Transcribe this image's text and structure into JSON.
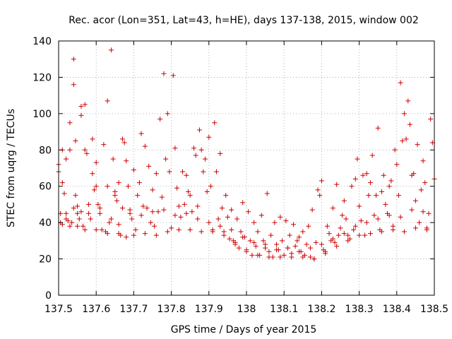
{
  "chart_data": {
    "type": "scatter",
    "title": "Rec. acor (Lon=351, Lat=43, h=HE), days 137-138, 2015, window 002",
    "xlabel": "GPS time / Days of year 2015",
    "ylabel": "STEC from uqrg / TECUs",
    "xlim": [
      137.5,
      138.5
    ],
    "ylim": [
      0,
      140
    ],
    "xticks": [
      137.5,
      137.6,
      137.7,
      137.8,
      137.9,
      138.0,
      138.1,
      138.2,
      138.3,
      138.4,
      138.5
    ],
    "xtick_labels": [
      "137.5",
      "137.6",
      "137.7",
      "137.8",
      "137.9",
      "138",
      "138.1",
      "138.2",
      "138.3",
      "138.4",
      "138.5"
    ],
    "yticks": [
      0,
      20,
      40,
      60,
      80,
      100,
      120,
      140
    ],
    "ytick_labels": [
      "0",
      "20",
      "40",
      "60",
      "80",
      "100",
      "120",
      "140"
    ],
    "grid": true,
    "marker": "+",
    "color": "#cc0000",
    "series": [
      {
        "name": "STEC",
        "points": [
          [
            137.5,
            72
          ],
          [
            137.5,
            68
          ],
          [
            137.505,
            45
          ],
          [
            137.505,
            40
          ],
          [
            137.51,
            80
          ],
          [
            137.51,
            62
          ],
          [
            137.515,
            56
          ],
          [
            137.52,
            75
          ],
          [
            137.52,
            42
          ],
          [
            137.525,
            41
          ],
          [
            137.53,
            95
          ],
          [
            137.53,
            80
          ],
          [
            137.535,
            40
          ],
          [
            137.54,
            130
          ],
          [
            137.54,
            116
          ],
          [
            137.545,
            85
          ],
          [
            137.545,
            55
          ],
          [
            137.55,
            49
          ],
          [
            137.55,
            45
          ],
          [
            137.555,
            42
          ],
          [
            137.56,
            104
          ],
          [
            137.56,
            99
          ],
          [
            137.565,
            38
          ],
          [
            137.57,
            105
          ],
          [
            137.57,
            80
          ],
          [
            137.575,
            78
          ],
          [
            137.58,
            45
          ],
          [
            137.585,
            42
          ],
          [
            137.59,
            86
          ],
          [
            137.59,
            67
          ],
          [
            137.595,
            58
          ],
          [
            137.6,
            73
          ],
          [
            137.6,
            60
          ],
          [
            137.605,
            50
          ],
          [
            137.61,
            48
          ],
          [
            137.615,
            36
          ],
          [
            137.62,
            83
          ],
          [
            137.625,
            35
          ],
          [
            137.63,
            107
          ],
          [
            137.63,
            60
          ],
          [
            137.635,
            40
          ],
          [
            137.64,
            135
          ],
          [
            137.645,
            75
          ],
          [
            137.65,
            57
          ],
          [
            137.65,
            55
          ],
          [
            137.655,
            52
          ],
          [
            137.66,
            62
          ],
          [
            137.66,
            39
          ],
          [
            137.665,
            33
          ],
          [
            137.67,
            86
          ],
          [
            137.675,
            84
          ],
          [
            137.68,
            74
          ],
          [
            137.685,
            60
          ],
          [
            137.69,
            47
          ],
          [
            137.695,
            42
          ],
          [
            137.7,
            69
          ],
          [
            137.705,
            36
          ],
          [
            137.71,
            55
          ],
          [
            137.715,
            62
          ],
          [
            137.72,
            89
          ],
          [
            137.725,
            49
          ],
          [
            137.73,
            82
          ],
          [
            137.735,
            48
          ],
          [
            137.74,
            71
          ],
          [
            137.745,
            40
          ],
          [
            137.75,
            58
          ],
          [
            137.755,
            38
          ],
          [
            137.76,
            67
          ],
          [
            137.765,
            46
          ],
          [
            137.77,
            97
          ],
          [
            137.775,
            54
          ],
          [
            137.78,
            122
          ],
          [
            137.785,
            75
          ],
          [
            137.79,
            100
          ],
          [
            137.795,
            68
          ],
          [
            137.8,
            37
          ],
          [
            137.805,
            121
          ],
          [
            137.81,
            81
          ],
          [
            137.815,
            59
          ],
          [
            137.82,
            49
          ],
          [
            137.825,
            43
          ],
          [
            137.83,
            68
          ],
          [
            137.835,
            50
          ],
          [
            137.84,
            66
          ],
          [
            137.845,
            57
          ],
          [
            137.85,
            55
          ],
          [
            137.855,
            46
          ],
          [
            137.86,
            81
          ],
          [
            137.865,
            77
          ],
          [
            137.87,
            49
          ],
          [
            137.875,
            91
          ],
          [
            137.88,
            80
          ],
          [
            137.885,
            68
          ],
          [
            137.89,
            75
          ],
          [
            137.895,
            57
          ],
          [
            137.9,
            87
          ],
          [
            137.905,
            60
          ],
          [
            137.91,
            35
          ],
          [
            137.915,
            95
          ],
          [
            137.92,
            68
          ],
          [
            137.925,
            42
          ],
          [
            137.93,
            78
          ],
          [
            137.935,
            48
          ],
          [
            137.94,
            35
          ],
          [
            137.945,
            55
          ],
          [
            137.95,
            43
          ],
          [
            137.955,
            31
          ],
          [
            137.96,
            47
          ],
          [
            137.965,
            30
          ],
          [
            137.97,
            29
          ],
          [
            137.975,
            42
          ],
          [
            137.98,
            26
          ],
          [
            137.985,
            35
          ],
          [
            137.99,
            51
          ],
          [
            137.995,
            32
          ],
          [
            138.0,
            25
          ],
          [
            138.005,
            46
          ],
          [
            138.01,
            30
          ],
          [
            138.015,
            22
          ],
          [
            138.02,
            40
          ],
          [
            138.025,
            27
          ],
          [
            138.03,
            35
          ],
          [
            138.035,
            22
          ],
          [
            138.04,
            44
          ],
          [
            138.045,
            30
          ],
          [
            138.05,
            26
          ],
          [
            138.055,
            56
          ],
          [
            138.06,
            24
          ],
          [
            138.065,
            33
          ],
          [
            138.07,
            21
          ],
          [
            138.075,
            40
          ],
          [
            138.08,
            28
          ],
          [
            138.085,
            25
          ],
          [
            138.09,
            43
          ],
          [
            138.095,
            30
          ],
          [
            138.1,
            22
          ],
          [
            138.105,
            41
          ],
          [
            138.11,
            26
          ],
          [
            138.115,
            33
          ],
          [
            138.12,
            23
          ],
          [
            138.125,
            39
          ],
          [
            138.13,
            27
          ],
          [
            138.135,
            30
          ],
          [
            138.14,
            32
          ],
          [
            138.145,
            24
          ],
          [
            138.15,
            35
          ],
          [
            138.155,
            22
          ],
          [
            138.16,
            28
          ],
          [
            138.165,
            38
          ],
          [
            138.17,
            21
          ],
          [
            138.175,
            47
          ],
          [
            138.18,
            20
          ],
          [
            138.185,
            29
          ],
          [
            138.19,
            58
          ],
          [
            138.195,
            55
          ],
          [
            138.2,
            63
          ],
          [
            138.205,
            25
          ],
          [
            138.21,
            24
          ],
          [
            138.215,
            38
          ],
          [
            138.22,
            34
          ],
          [
            138.225,
            30
          ],
          [
            138.23,
            48
          ],
          [
            138.235,
            29
          ],
          [
            138.24,
            61
          ],
          [
            138.245,
            33
          ],
          [
            138.25,
            37
          ],
          [
            138.255,
            44
          ],
          [
            138.26,
            52
          ],
          [
            138.265,
            42
          ],
          [
            138.27,
            33
          ],
          [
            138.275,
            31
          ],
          [
            138.28,
            60
          ],
          [
            138.285,
            36
          ],
          [
            138.29,
            64
          ],
          [
            138.295,
            75
          ],
          [
            138.3,
            49
          ],
          [
            138.305,
            41
          ],
          [
            138.31,
            66
          ],
          [
            138.315,
            33
          ],
          [
            138.32,
            67
          ],
          [
            138.325,
            55
          ],
          [
            138.33,
            62
          ],
          [
            138.335,
            77
          ],
          [
            138.34,
            44
          ],
          [
            138.345,
            55
          ],
          [
            138.35,
            92
          ],
          [
            138.355,
            36
          ],
          [
            138.36,
            57
          ],
          [
            138.365,
            66
          ],
          [
            138.37,
            50
          ],
          [
            138.375,
            45
          ],
          [
            138.38,
            60
          ],
          [
            138.385,
            63
          ],
          [
            138.39,
            38
          ],
          [
            138.395,
            80
          ],
          [
            138.4,
            72
          ],
          [
            138.405,
            55
          ],
          [
            138.41,
            117
          ],
          [
            138.415,
            85
          ],
          [
            138.42,
            100
          ],
          [
            138.425,
            86
          ],
          [
            138.43,
            107
          ],
          [
            138.435,
            94
          ],
          [
            138.44,
            66
          ],
          [
            138.445,
            67
          ],
          [
            138.45,
            52
          ],
          [
            138.455,
            83
          ],
          [
            138.46,
            40
          ],
          [
            138.465,
            58
          ],
          [
            138.47,
            74
          ],
          [
            138.475,
            62
          ],
          [
            138.48,
            37
          ],
          [
            138.485,
            45
          ],
          [
            138.49,
            97
          ],
          [
            138.495,
            84
          ],
          [
            138.5,
            64
          ],
          [
            137.51,
            39
          ],
          [
            137.53,
            38
          ],
          [
            137.55,
            38
          ],
          [
            137.57,
            36
          ],
          [
            137.6,
            36
          ],
          [
            137.63,
            34
          ],
          [
            137.66,
            34
          ],
          [
            137.68,
            32
          ],
          [
            137.7,
            33
          ],
          [
            137.73,
            34
          ],
          [
            137.76,
            33
          ],
          [
            137.79,
            35
          ],
          [
            137.82,
            36
          ],
          [
            137.85,
            36
          ],
          [
            137.88,
            35
          ],
          [
            137.91,
            36
          ],
          [
            137.94,
            33
          ],
          [
            137.97,
            28
          ],
          [
            138.0,
            24
          ],
          [
            138.03,
            22
          ],
          [
            138.06,
            21
          ],
          [
            138.09,
            21
          ],
          [
            138.12,
            21
          ],
          [
            138.15,
            21
          ],
          [
            138.18,
            20
          ],
          [
            138.21,
            23
          ],
          [
            138.24,
            27
          ],
          [
            138.27,
            30
          ],
          [
            138.3,
            33
          ],
          [
            138.33,
            34
          ],
          [
            138.36,
            35
          ],
          [
            138.39,
            36
          ],
          [
            138.42,
            35
          ],
          [
            138.45,
            37
          ],
          [
            138.48,
            36
          ],
          [
            137.52,
            45
          ],
          [
            137.54,
            48
          ],
          [
            137.56,
            46
          ],
          [
            137.58,
            50
          ],
          [
            137.61,
            45
          ],
          [
            137.64,
            42
          ],
          [
            137.67,
            48
          ],
          [
            137.69,
            45
          ],
          [
            137.72,
            44
          ],
          [
            137.75,
            46
          ],
          [
            137.78,
            47
          ],
          [
            137.81,
            44
          ],
          [
            137.84,
            45
          ],
          [
            137.87,
            42
          ],
          [
            137.9,
            40
          ],
          [
            137.93,
            38
          ],
          [
            137.96,
            36
          ],
          [
            137.99,
            32
          ],
          [
            138.02,
            29
          ],
          [
            138.05,
            28
          ],
          [
            138.08,
            25
          ],
          [
            138.11,
            26
          ],
          [
            138.14,
            24
          ],
          [
            138.17,
            26
          ],
          [
            138.2,
            28
          ],
          [
            138.23,
            31
          ],
          [
            138.26,
            34
          ],
          [
            138.29,
            38
          ],
          [
            138.32,
            40
          ],
          [
            138.35,
            42
          ],
          [
            138.38,
            44
          ],
          [
            138.41,
            43
          ],
          [
            138.44,
            47
          ],
          [
            138.47,
            46
          ]
        ]
      }
    ]
  }
}
